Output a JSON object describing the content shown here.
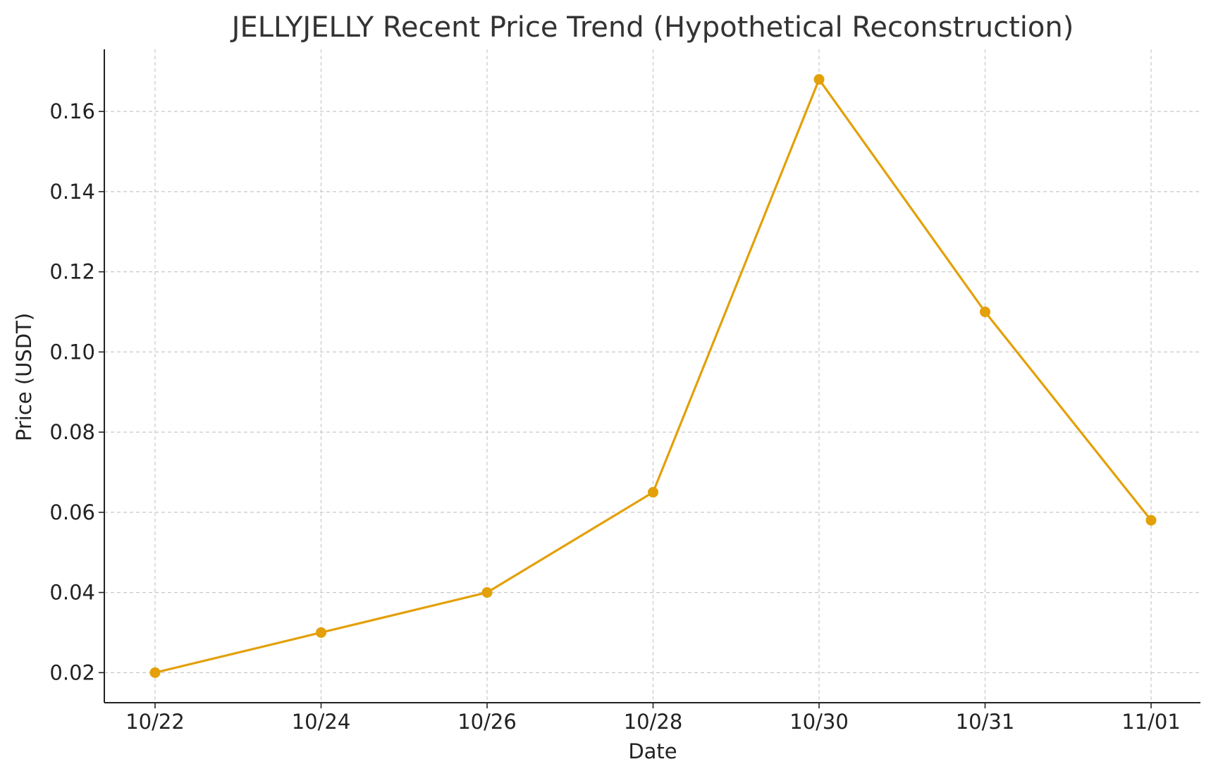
{
  "chart_data": {
    "type": "line",
    "title": "JELLYJELLY Recent Price Trend (Hypothetical Reconstruction)",
    "xlabel": "Date",
    "ylabel": "Price (USDT)",
    "categories": [
      "10/22",
      "10/24",
      "10/26",
      "10/28",
      "10/30",
      "10/31",
      "11/01"
    ],
    "series": [
      {
        "values": [
          0.02,
          0.03,
          0.04,
          0.065,
          0.168,
          0.11,
          0.058
        ]
      }
    ],
    "y_ticks": [
      "0.02",
      "0.04",
      "0.06",
      "0.08",
      "0.10",
      "0.12",
      "0.14",
      "0.16"
    ],
    "ylim": [
      0.0125,
      0.1755
    ],
    "grid": true,
    "legend": "none",
    "line_color": "#E3A008"
  }
}
